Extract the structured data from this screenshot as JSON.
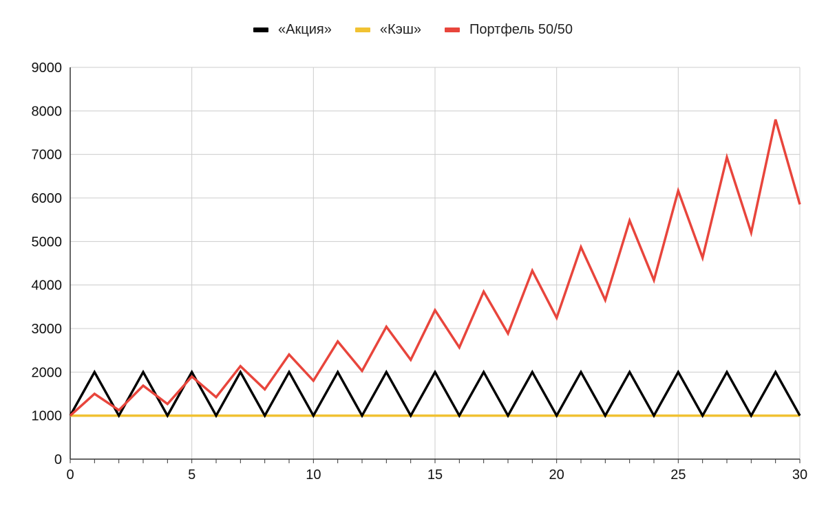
{
  "chart_data": {
    "type": "line",
    "title": "",
    "xlabel": "",
    "ylabel": "",
    "xlim": [
      0,
      30
    ],
    "ylim": [
      0,
      9000
    ],
    "x_ticks": [
      0,
      5,
      10,
      15,
      20,
      25,
      30
    ],
    "y_ticks": [
      0,
      1000,
      2000,
      3000,
      4000,
      5000,
      6000,
      7000,
      8000,
      9000
    ],
    "grid": true,
    "legend_position": "top-center",
    "x": [
      0,
      1,
      2,
      3,
      4,
      5,
      6,
      7,
      8,
      9,
      10,
      11,
      12,
      13,
      14,
      15,
      16,
      17,
      18,
      19,
      20,
      21,
      22,
      23,
      24,
      25,
      26,
      27,
      28,
      29,
      30
    ],
    "series": [
      {
        "name": "«Акция»",
        "color": "#000000",
        "values": [
          1000,
          2000,
          1000,
          2000,
          1000,
          2000,
          1000,
          2000,
          1000,
          2000,
          1000,
          2000,
          1000,
          2000,
          1000,
          2000,
          1000,
          2000,
          1000,
          2000,
          1000,
          2000,
          1000,
          2000,
          1000,
          2000,
          1000,
          2000,
          1000,
          2000,
          1000
        ]
      },
      {
        "name": "«Кэш»",
        "color": "#f1c232",
        "values": [
          1000,
          1000,
          1000,
          1000,
          1000,
          1000,
          1000,
          1000,
          1000,
          1000,
          1000,
          1000,
          1000,
          1000,
          1000,
          1000,
          1000,
          1000,
          1000,
          1000,
          1000,
          1000,
          1000,
          1000,
          1000,
          1000,
          1000,
          1000,
          1000,
          1000,
          1000
        ]
      },
      {
        "name": "Портфель 50/50",
        "color": "#e8453c",
        "values": [
          1000,
          1500,
          1125,
          1688,
          1266,
          1898,
          1424,
          2136,
          1602,
          2403,
          1802,
          2703,
          2027,
          3041,
          2281,
          3421,
          2566,
          3849,
          2887,
          4330,
          3247,
          4871,
          3653,
          5480,
          4110,
          6165,
          4624,
          6935,
          5202,
          7802,
          5852
        ]
      }
    ]
  }
}
